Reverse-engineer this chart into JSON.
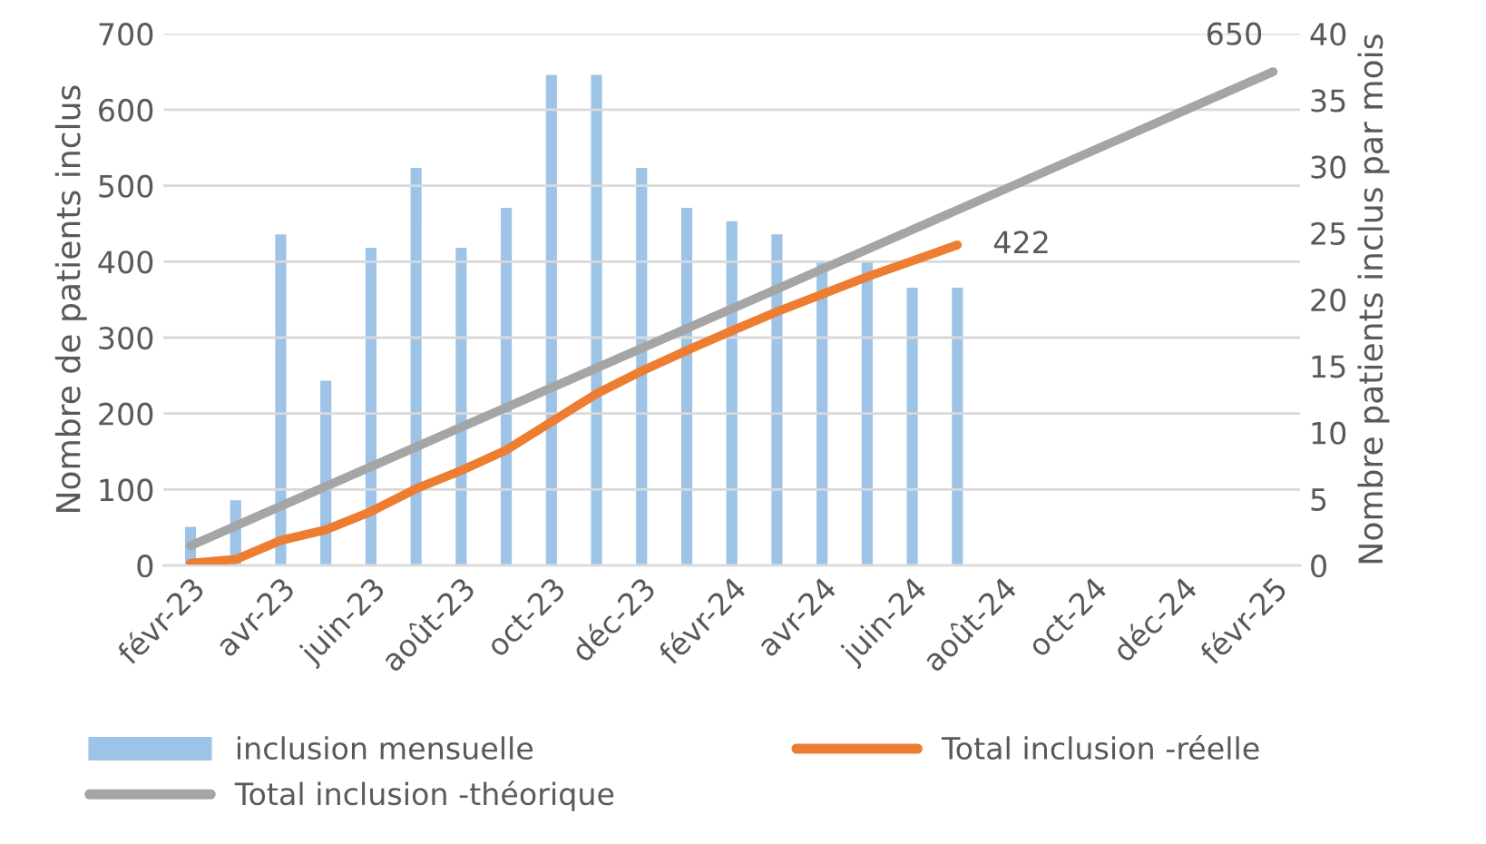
{
  "chart_data": {
    "type": "bar",
    "ylabel": "Nombre de patients inclus",
    "y2label": "Nombre patients inclus par mois",
    "categories": [
      "févr-23",
      null,
      "avr-23",
      null,
      "juin-23",
      null,
      "août-23",
      null,
      "oct-23",
      null,
      "déc-23",
      null,
      "févr-24",
      null,
      "avr-24",
      null,
      "juin-24",
      null,
      "août-24",
      null,
      "oct-24",
      null,
      "déc-24",
      null,
      "févr-25"
    ],
    "series": [
      {
        "name": "inclusion mensuelle",
        "axis": "y2",
        "color": "#9dc3e6",
        "values": [
          3,
          5,
          25,
          14,
          24,
          30,
          24,
          27,
          37,
          37,
          30,
          27,
          26,
          25,
          23,
          23,
          21,
          21,
          null,
          null,
          null,
          null,
          null,
          null,
          null
        ]
      },
      {
        "name": "Total inclusion -réelle",
        "type": "line",
        "color": "#ed7d31",
        "values": [
          3,
          8,
          33,
          47,
          71,
          101,
          125,
          152,
          189,
          226,
          256,
          283,
          309,
          334,
          357,
          380,
          401,
          422,
          null,
          null,
          null,
          null,
          null,
          null,
          null
        ],
        "value_labels": [
          null,
          null,
          null,
          null,
          null,
          null,
          null,
          null,
          null,
          null,
          null,
          null,
          null,
          null,
          null,
          null,
          null,
          "422",
          null,
          null,
          null,
          null,
          null,
          null,
          null
        ]
      },
      {
        "name": "Total inclusion -théorique",
        "type": "line",
        "color": "#a5a5a5",
        "values": [
          26,
          52,
          78,
          104,
          130,
          156,
          182,
          208,
          234,
          260,
          286,
          312,
          338,
          364,
          390,
          416,
          442,
          468,
          494,
          520,
          546,
          572,
          598,
          624,
          650
        ],
        "value_labels": [
          null,
          null,
          null,
          null,
          null,
          null,
          null,
          null,
          null,
          null,
          null,
          null,
          null,
          null,
          null,
          null,
          null,
          null,
          null,
          null,
          null,
          null,
          null,
          null,
          "650"
        ]
      }
    ],
    "ylim": [
      0,
      700
    ],
    "yticks": [
      0,
      100,
      200,
      300,
      400,
      500,
      600,
      700
    ],
    "y2lim": [
      0,
      40
    ],
    "y2ticks": [
      0,
      5,
      10,
      15,
      20,
      25,
      30,
      35,
      40
    ],
    "grid": "y",
    "legend": "bottom"
  }
}
